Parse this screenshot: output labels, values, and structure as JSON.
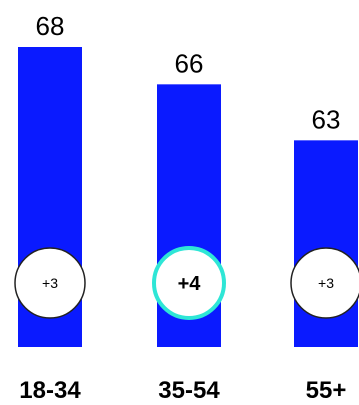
{
  "chart_data": {
    "type": "bar",
    "categories": [
      "18-34",
      "35-54",
      "55+"
    ],
    "values": [
      68,
      66,
      63
    ],
    "changes": [
      "+3",
      "+4",
      "+3"
    ],
    "highlighted_index": 1,
    "title": "",
    "xlabel": "",
    "ylabel": "",
    "colors": {
      "bar": "#0a1aff",
      "badge_fill": "#ffffff",
      "badge_border": "#222222",
      "badge_highlight_border": "#2ee6d6"
    }
  }
}
